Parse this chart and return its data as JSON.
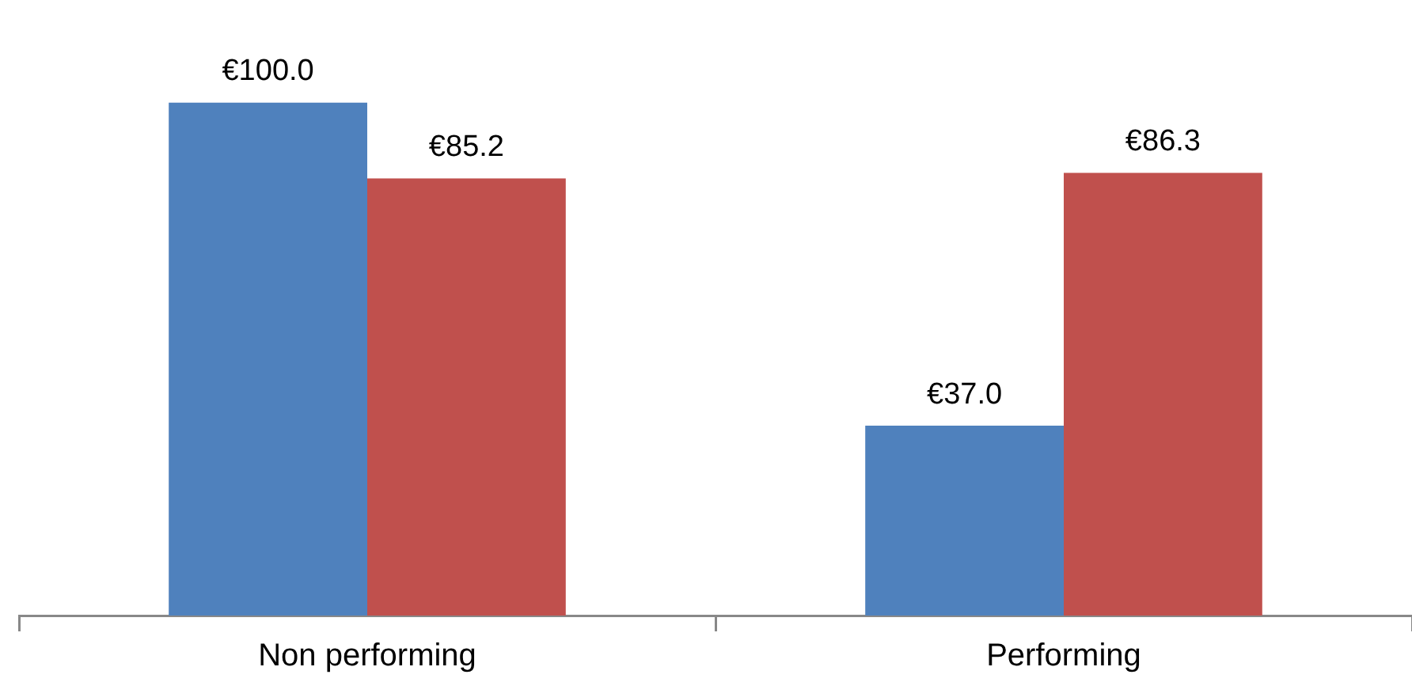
{
  "chart_data": {
    "type": "bar",
    "categories": [
      "Non performing",
      "Performing"
    ],
    "series": [
      {
        "color": "#4f81bd",
        "values": [
          100.0,
          37.0
        ],
        "value_labels": [
          "€100.0",
          "€37.0"
        ]
      },
      {
        "color": "#c0504d",
        "values": [
          85.2,
          86.3
        ],
        "value_labels": [
          "€85.2",
          "€86.3"
        ]
      }
    ],
    "grid": false
  }
}
